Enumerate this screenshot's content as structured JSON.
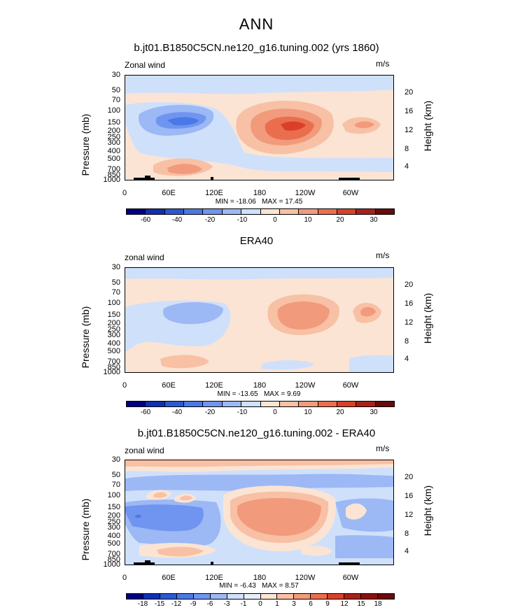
{
  "title": "ANN",
  "units": "m/s",
  "y_axis_label": "Pressure (mb)",
  "y2_axis_label": "Height (km)",
  "pressure_ticks": [
    "30",
    "50",
    "70",
    "100",
    "150",
    "200",
    "250",
    "300",
    "400",
    "500",
    "700",
    "850",
    "1000"
  ],
  "height_ticks": [
    "20",
    "16",
    "12",
    "8",
    "4"
  ],
  "x_ticks": [
    "0",
    "60E",
    "120E",
    "180",
    "120W",
    "60W"
  ],
  "colors": {
    "c1": "#000080",
    "c2": "#1030b0",
    "c3": "#2a5ad0",
    "c4": "#4a78e6",
    "c5": "#7095f0",
    "c6": "#9cb8f5",
    "c7": "#cfe0fb",
    "c8": "#fbe4d4",
    "c9": "#f8c0a4",
    "c10": "#f19a7c",
    "c11": "#ea6e4e",
    "c12": "#d9402a",
    "c13": "#a8201a",
    "c14": "#6a0a0a"
  },
  "chart_data": [
    {
      "type": "heatmap",
      "title": "b.jt01.B1850C5CN.ne120_g16.tuning.002 (yrs 1860)",
      "field_label": "Zonal wind",
      "min_text": "MIN = -18.06",
      "max_text": "MAX = 17.45",
      "levels": [
        "-60",
        "-40",
        "-20",
        "-10",
        "0",
        "10",
        "20",
        "30"
      ],
      "xlabel": "",
      "ylabel": "Pressure (mb)"
    },
    {
      "type": "heatmap",
      "title": "ERA40",
      "field_label": "zonal wind",
      "min_text": "MIN = -13.65",
      "max_text": "MAX = 9.69",
      "levels": [
        "-60",
        "-40",
        "-20",
        "-10",
        "0",
        "10",
        "20",
        "30"
      ],
      "xlabel": "",
      "ylabel": "Pressure (mb)"
    },
    {
      "type": "heatmap",
      "title": "b.jt01.B1850C5CN.ne120_g16.tuning.002 - ERA40",
      "field_label": "zonal wind",
      "min_text": "MIN = -6.43",
      "max_text": "MAX = 8.57",
      "levels": [
        "-18",
        "-15",
        "-12",
        "-9",
        "-6",
        "-3",
        "-1",
        "0",
        "1",
        "3",
        "6",
        "9",
        "12",
        "15",
        "18"
      ],
      "xlabel": "",
      "ylabel": "Pressure (mb)"
    }
  ]
}
